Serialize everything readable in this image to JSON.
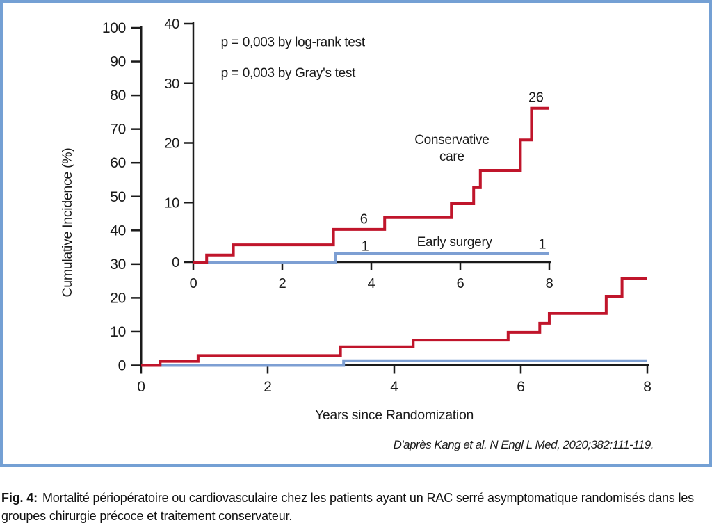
{
  "figure": {
    "source": "D'après Kang et al. N Engl L Med, 2020;382:111-119.",
    "caption_prefix": "Fig. 4:",
    "caption_text": "Mortalité périopératoire ou cardiovasculaire chez les patients ayant un RAC serré asymptomatique randomisés dans les groupes chirurgie précoce et traitement conservateur.",
    "border_color": "#74a0d4"
  },
  "colors": {
    "conservative": "#c0152b",
    "surgery": "#7d9fd3",
    "axis": "#1a1a1a",
    "text": "#1a1a1a"
  },
  "chart_data": [
    {
      "id": "main",
      "type": "line",
      "subtype": "step",
      "title": "",
      "xlabel": "Years since Randomization",
      "ylabel": "Cumulative Incidence (%)",
      "xlim": [
        0,
        8
      ],
      "ylim": [
        0,
        100
      ],
      "xticks": [
        0,
        2,
        4,
        6,
        8
      ],
      "yticks": [
        0,
        10,
        20,
        30,
        40,
        50,
        60,
        70,
        80,
        90,
        100
      ],
      "grid": false,
      "legend": "none",
      "series": [
        {
          "name": "Conservative care",
          "color_key": "conservative",
          "step_points": [
            [
              0,
              0
            ],
            [
              0.3,
              1.2
            ],
            [
              0.9,
              2.9
            ],
            [
              3.15,
              5.5
            ],
            [
              4.3,
              7.5
            ],
            [
              5.8,
              9.8
            ],
            [
              6.3,
              12.5
            ],
            [
              6.45,
              15.4
            ],
            [
              7.35,
              20.5
            ],
            [
              7.6,
              25.8
            ],
            [
              8,
              25.8
            ]
          ]
        },
        {
          "name": "Early surgery",
          "color_key": "surgery",
          "step_points": [
            [
              0,
              0
            ],
            [
              3.2,
              1.4
            ],
            [
              8,
              1.4
            ]
          ]
        }
      ],
      "annotations": []
    },
    {
      "id": "inset",
      "type": "line",
      "subtype": "step",
      "title": "",
      "xlabel": "",
      "ylabel": "",
      "xlim": [
        0,
        8
      ],
      "ylim": [
        0,
        40
      ],
      "xticks": [
        0,
        2,
        4,
        6,
        8
      ],
      "yticks": [
        0,
        10,
        20,
        30,
        40
      ],
      "grid": false,
      "legend": "inline-labels",
      "series": [
        {
          "name": "Conservative care",
          "color_key": "conservative",
          "step_points": [
            [
              0,
              0
            ],
            [
              0.3,
              1.2
            ],
            [
              0.9,
              2.9
            ],
            [
              3.15,
              5.5
            ],
            [
              4.3,
              7.5
            ],
            [
              5.8,
              9.8
            ],
            [
              6.3,
              12.5
            ],
            [
              6.45,
              15.4
            ],
            [
              7.35,
              20.5
            ],
            [
              7.6,
              25.8
            ],
            [
              8,
              25.8
            ]
          ]
        },
        {
          "name": "Early surgery",
          "color_key": "surgery",
          "step_points": [
            [
              0,
              0
            ],
            [
              3.2,
              1.4
            ],
            [
              8,
              1.4
            ]
          ]
        }
      ],
      "annotations": [
        {
          "name": "p-logrank-label",
          "text": "p = 0,003 by log-rank test",
          "x": 0.62,
          "y": 36.2,
          "anchor": "start",
          "size": 19
        },
        {
          "name": "p-gray-label",
          "text": "p = 0,003 by Gray's test",
          "x": 0.62,
          "y": 31.0,
          "anchor": "start",
          "size": 19
        },
        {
          "name": "conservative-care-label-line1",
          "text": "Conservative",
          "x": 5.81,
          "y": 19.8,
          "anchor": "middle",
          "size": 19
        },
        {
          "name": "conservative-care-label-line2",
          "text": "care",
          "x": 5.81,
          "y": 17.0,
          "anchor": "middle",
          "size": 19
        },
        {
          "name": "events-count-26",
          "text": "26",
          "x": 7.7,
          "y": 26.9,
          "anchor": "middle",
          "size": 20
        },
        {
          "name": "events-count-6",
          "text": "6",
          "x": 3.83,
          "y": 6.5,
          "anchor": "middle",
          "size": 20
        },
        {
          "name": "events-count-1-first",
          "text": "1",
          "x": 3.86,
          "y": 1.9,
          "anchor": "middle",
          "size": 20
        },
        {
          "name": "early-surgery-label",
          "text": "Early surgery",
          "x": 5.87,
          "y": 2.7,
          "anchor": "middle",
          "size": 19
        },
        {
          "name": "events-count-1-last",
          "text": "1",
          "x": 7.84,
          "y": 2.3,
          "anchor": "middle",
          "size": 20
        }
      ]
    }
  ]
}
